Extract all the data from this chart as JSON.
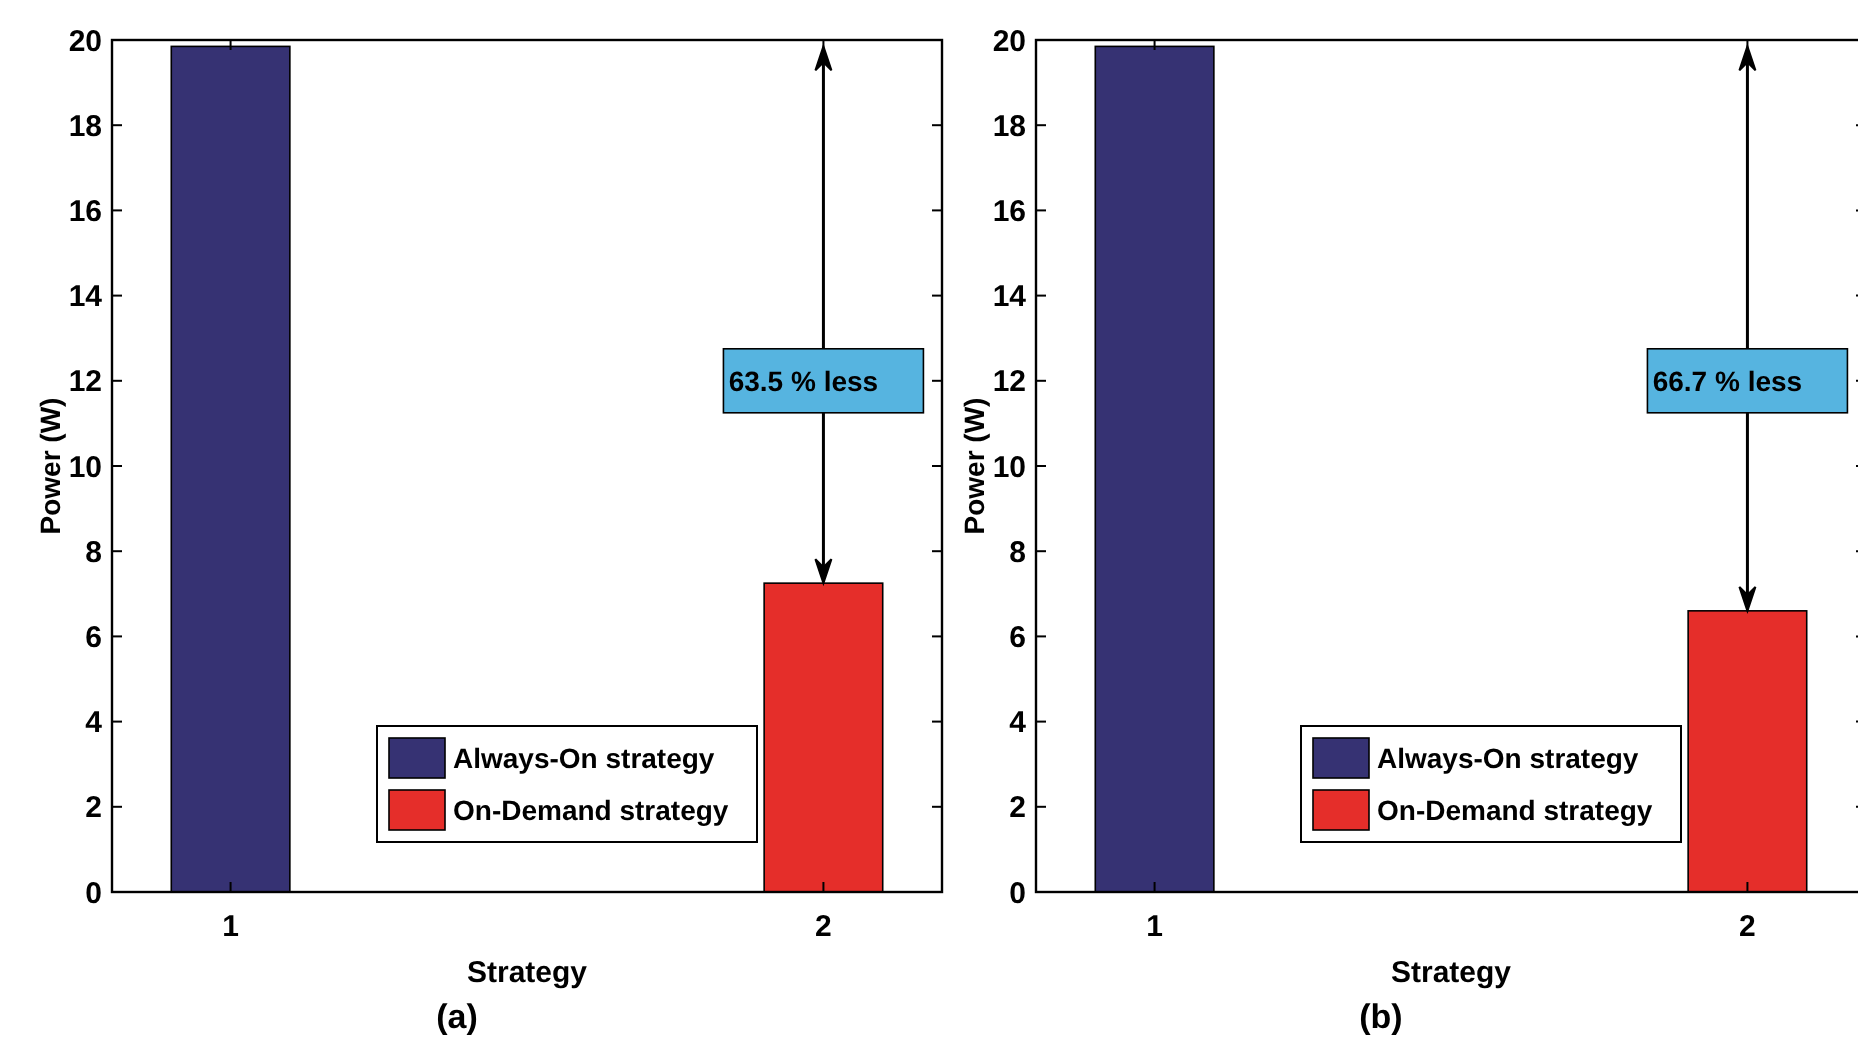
{
  "chart_data": [
    {
      "type": "bar",
      "subtitle": "(a)",
      "xlabel": "Strategy",
      "ylabel": "Power (W)",
      "categories": [
        "1",
        "2"
      ],
      "series": [
        {
          "name": "Always-On strategy",
          "color": "#363273",
          "values": [
            19.85,
            null
          ]
        },
        {
          "name": "On-Demand strategy",
          "color": "#e52e2a",
          "values": [
            null,
            7.25
          ]
        }
      ],
      "ylim": [
        0,
        20
      ],
      "yticks": [
        0,
        2,
        4,
        6,
        8,
        10,
        12,
        14,
        16,
        18,
        20
      ],
      "legend": "bottom",
      "annotations": [
        "63.5 % less"
      ]
    },
    {
      "type": "bar",
      "subtitle": "(b)",
      "xlabel": "Strategy",
      "ylabel": "Power (W)",
      "categories": [
        "1",
        "2"
      ],
      "series": [
        {
          "name": "Always-On strategy",
          "color": "#363273",
          "values": [
            19.85,
            null
          ]
        },
        {
          "name": "On-Demand strategy",
          "color": "#e52e2a",
          "values": [
            null,
            6.6
          ]
        }
      ],
      "ylim": [
        0,
        20
      ],
      "yticks": [
        0,
        2,
        4,
        6,
        8,
        10,
        12,
        14,
        16,
        18,
        20
      ],
      "legend": "bottom",
      "annotations": [
        "66.7 % less"
      ]
    }
  ]
}
